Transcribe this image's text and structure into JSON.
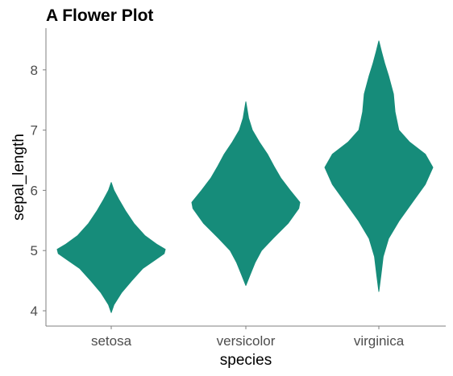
{
  "chart_data": {
    "type": "violin",
    "title": "A Flower Plot",
    "xlabel": "species",
    "ylabel": "sepal_length",
    "ylim": [
      3.75,
      8.7
    ],
    "yticks": [
      4,
      5,
      6,
      7,
      8
    ],
    "grid": false,
    "legend": "none",
    "fill_color": "#168c7a",
    "categories": [
      "setosa",
      "versicolor",
      "virginica"
    ],
    "distributions": [
      {
        "name": "setosa",
        "min": 3.97,
        "max": 6.13,
        "profile": [
          [
            3.97,
            0.0
          ],
          [
            4.1,
            0.05
          ],
          [
            4.3,
            0.19
          ],
          [
            4.5,
            0.38
          ],
          [
            4.7,
            0.58
          ],
          [
            4.85,
            0.82
          ],
          [
            4.95,
            0.98
          ],
          [
            5.02,
            1.0
          ],
          [
            5.1,
            0.85
          ],
          [
            5.25,
            0.62
          ],
          [
            5.45,
            0.42
          ],
          [
            5.65,
            0.27
          ],
          [
            5.85,
            0.14
          ],
          [
            6.0,
            0.05
          ],
          [
            6.13,
            0.0
          ]
        ]
      },
      {
        "name": "versicolor",
        "min": 4.42,
        "max": 7.47,
        "profile": [
          [
            4.42,
            0.0
          ],
          [
            4.6,
            0.08
          ],
          [
            4.8,
            0.17
          ],
          [
            5.0,
            0.29
          ],
          [
            5.2,
            0.5
          ],
          [
            5.45,
            0.78
          ],
          [
            5.7,
            0.98
          ],
          [
            5.8,
            1.0
          ],
          [
            6.0,
            0.82
          ],
          [
            6.2,
            0.65
          ],
          [
            6.4,
            0.52
          ],
          [
            6.6,
            0.4
          ],
          [
            6.8,
            0.25
          ],
          [
            7.0,
            0.12
          ],
          [
            7.2,
            0.05
          ],
          [
            7.47,
            0.0
          ]
        ]
      },
      {
        "name": "virginica",
        "min": 4.32,
        "max": 8.48,
        "profile": [
          [
            4.32,
            0.0
          ],
          [
            4.6,
            0.04
          ],
          [
            4.9,
            0.08
          ],
          [
            5.2,
            0.18
          ],
          [
            5.5,
            0.38
          ],
          [
            5.8,
            0.62
          ],
          [
            6.1,
            0.86
          ],
          [
            6.38,
            1.0
          ],
          [
            6.6,
            0.86
          ],
          [
            6.8,
            0.57
          ],
          [
            7.0,
            0.37
          ],
          [
            7.3,
            0.3
          ],
          [
            7.6,
            0.27
          ],
          [
            7.9,
            0.18
          ],
          [
            8.1,
            0.11
          ],
          [
            8.3,
            0.05
          ],
          [
            8.48,
            0.0
          ]
        ]
      }
    ]
  }
}
